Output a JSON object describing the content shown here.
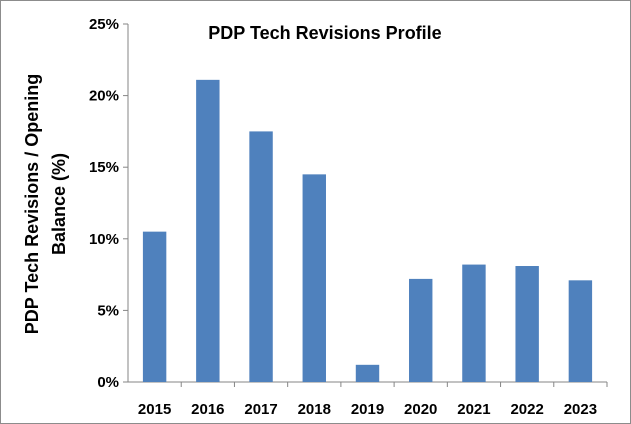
{
  "chart_data": {
    "type": "bar",
    "title": "PDP Tech Revisions Profile",
    "ylabel_lines": [
      "PDP Tech Revisions / Opening",
      "Balance (%)"
    ],
    "xlabel": "",
    "categories": [
      "2015",
      "2016",
      "2017",
      "2018",
      "2019",
      "2020",
      "2021",
      "2022",
      "2023"
    ],
    "values": [
      10.5,
      21.1,
      17.5,
      14.5,
      1.2,
      7.2,
      8.2,
      8.1,
      7.1
    ],
    "ylim": [
      0,
      25
    ],
    "yticks": [
      0,
      5,
      10,
      15,
      20,
      25
    ],
    "ytick_labels": [
      "0%",
      "5%",
      "10%",
      "15%",
      "20%",
      "25%"
    ],
    "bar_color": "#4f81bd",
    "grid": false,
    "legend": "none"
  }
}
